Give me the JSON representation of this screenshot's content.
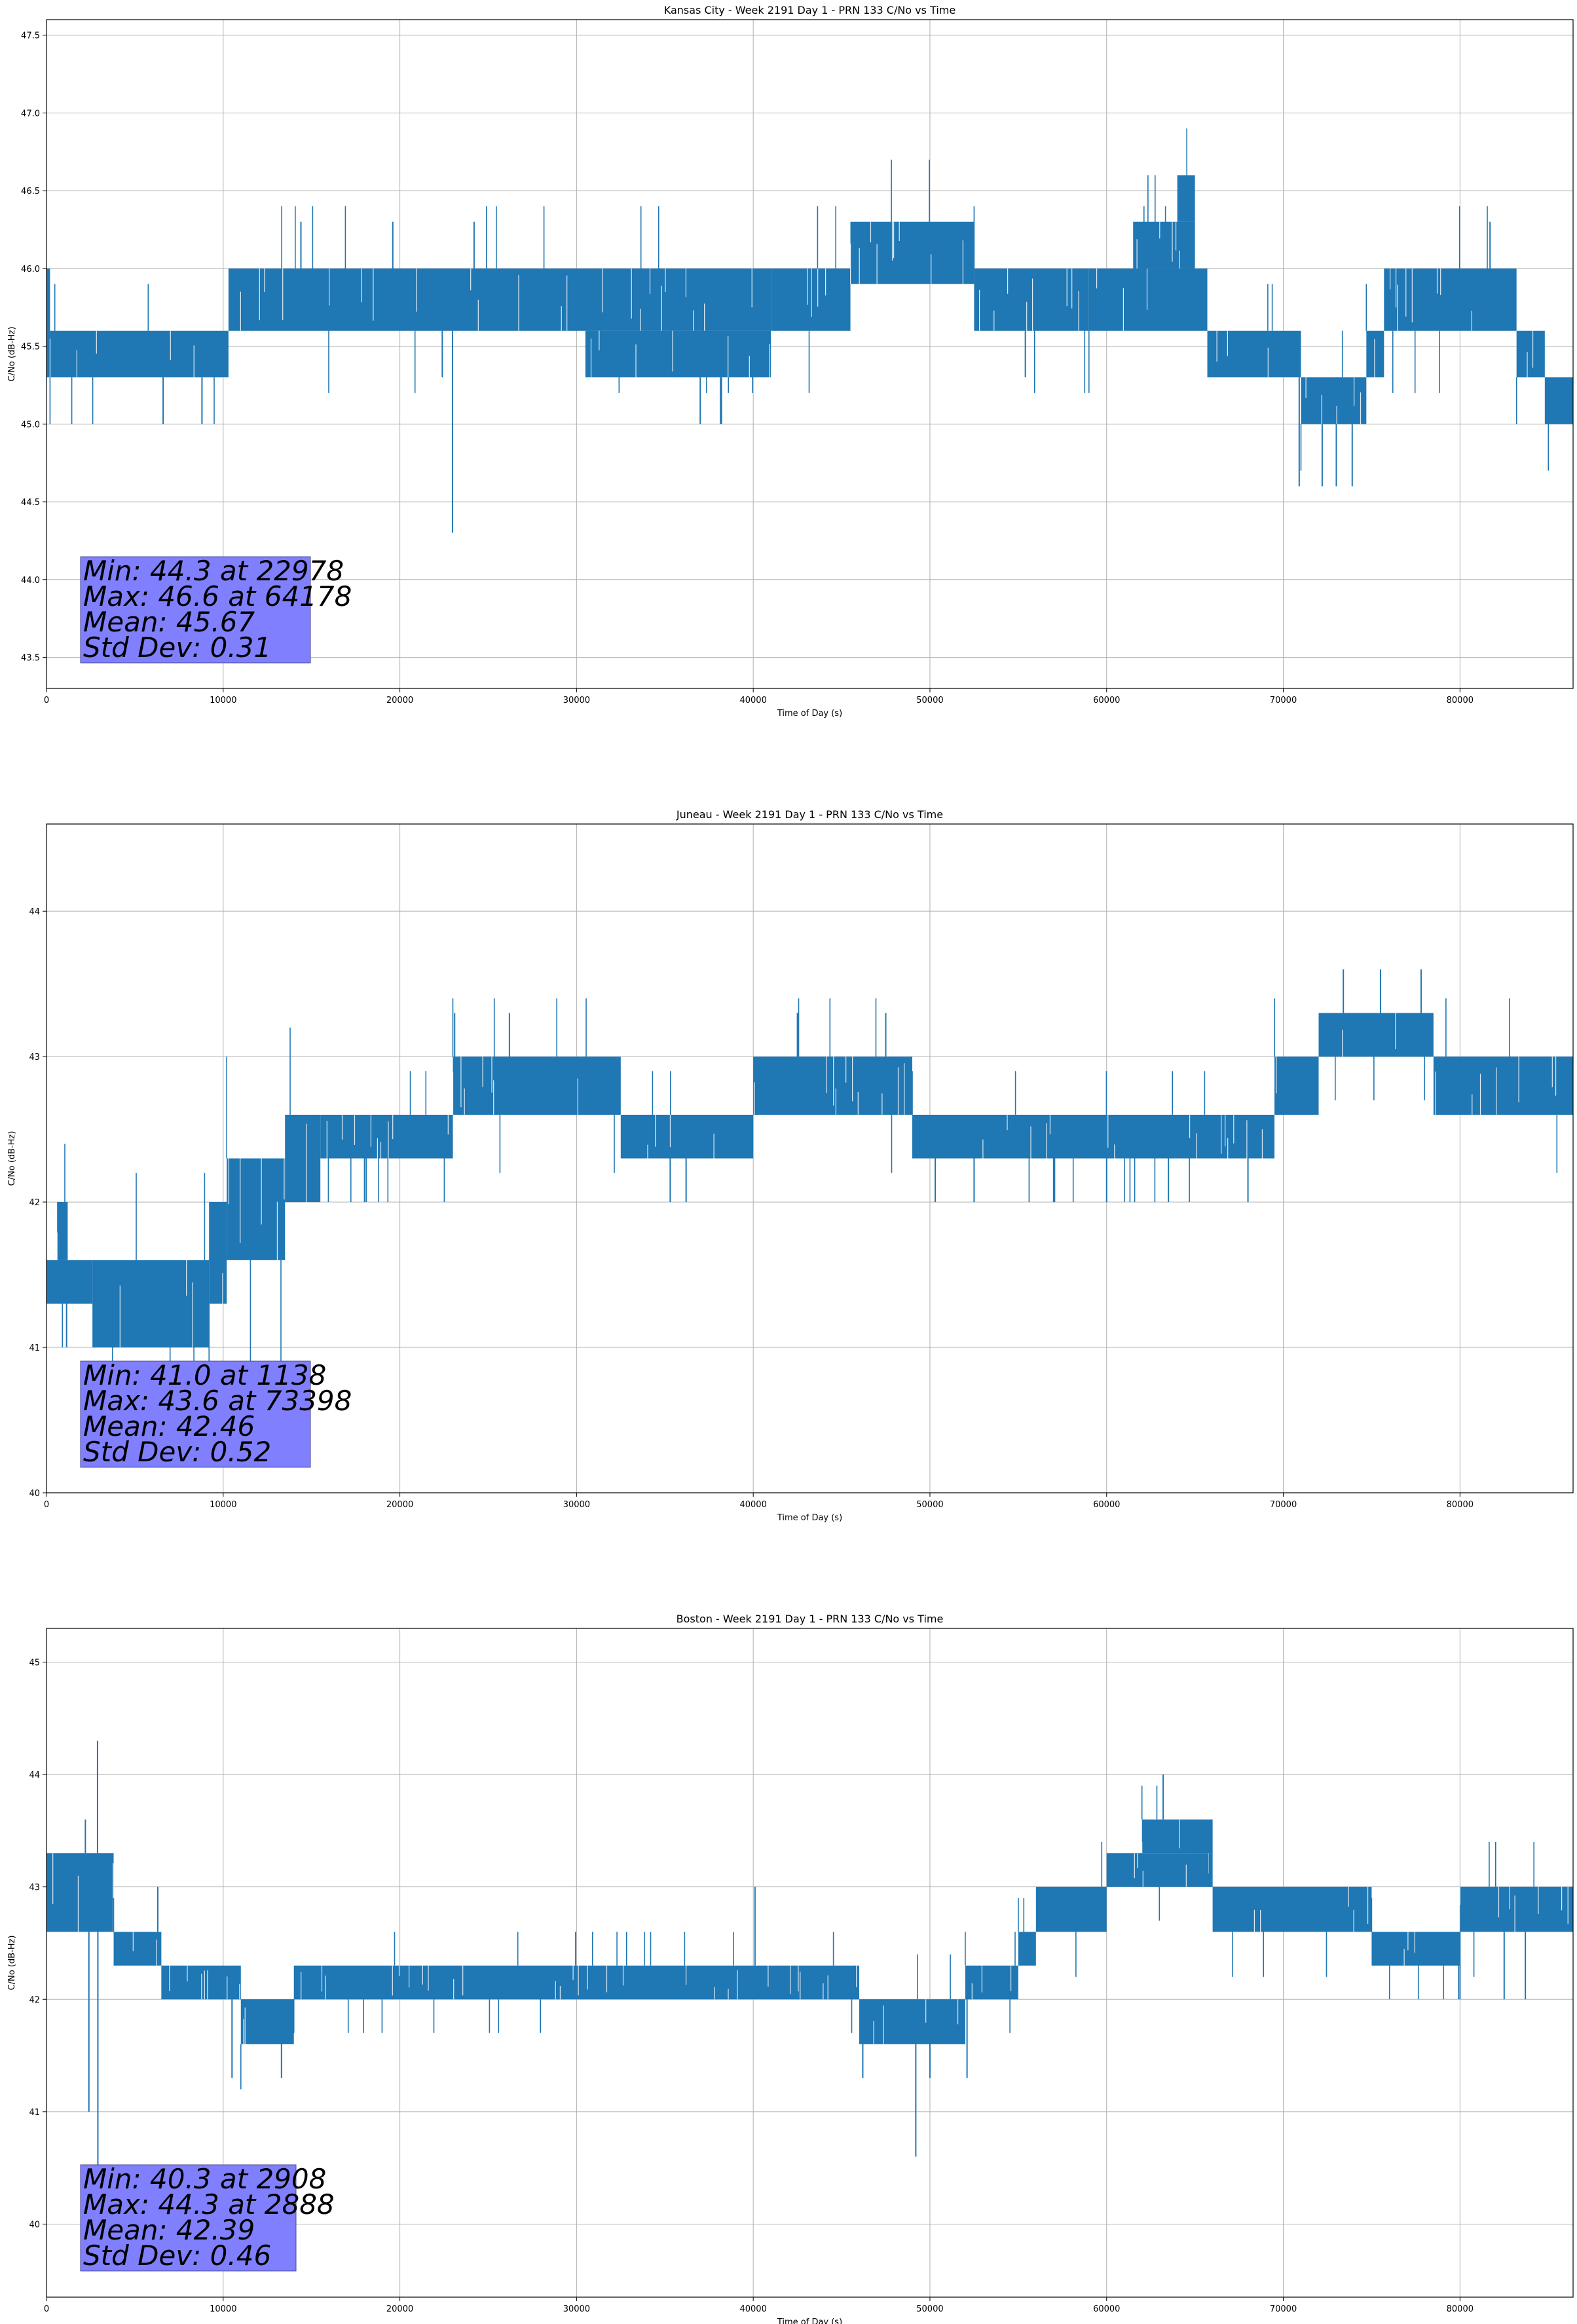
{
  "chart_data": [
    {
      "type": "line",
      "title": "Kansas City - Week 2191 Day 1 - PRN 133 C/No vs Time",
      "xlabel": "Time of Day (s)",
      "ylabel": "C/No (dB-Hz)",
      "xlim": [
        0,
        86400
      ],
      "ylim": [
        43.3,
        47.6
      ],
      "xticks": [
        0,
        10000,
        20000,
        30000,
        40000,
        50000,
        60000,
        70000,
        80000
      ],
      "yticks": [
        43.5,
        44.0,
        44.5,
        45.0,
        45.5,
        46.0,
        46.5,
        47.0,
        47.5
      ],
      "ytick_labels": [
        "43.5",
        "44.0",
        "44.5",
        "45.0",
        "45.5",
        "46.0",
        "46.5",
        "47.0",
        "47.5"
      ],
      "grid": true,
      "color": "#1f77b4",
      "stats": [
        "Min: 44.3 at 22978",
        "Max: 46.6 at 64178",
        "Mean: 45.67",
        "Std Dev: 0.31"
      ],
      "segments": [
        {
          "x": [
            0,
            200
          ],
          "low": 45.3,
          "high": 46.0
        },
        {
          "x": [
            200,
            10300
          ],
          "low": 45.3,
          "high": 45.6
        },
        {
          "x": [
            10300,
            41000
          ],
          "low": 45.6,
          "high": 46.0
        },
        {
          "x": [
            30500,
            41000
          ],
          "low": 45.3,
          "high": 45.6
        },
        {
          "x": [
            41000,
            45500
          ],
          "low": 45.6,
          "high": 46.0
        },
        {
          "x": [
            45500,
            52500
          ],
          "low": 45.9,
          "high": 46.3
        },
        {
          "x": [
            52500,
            59000
          ],
          "low": 45.6,
          "high": 46.0
        },
        {
          "x": [
            59000,
            65700
          ],
          "low": 45.6,
          "high": 46.0
        },
        {
          "x": [
            61500,
            65000
          ],
          "low": 46.0,
          "high": 46.3
        },
        {
          "x": [
            64000,
            65000
          ],
          "low": 46.3,
          "high": 46.6
        },
        {
          "x": [
            65700,
            71000
          ],
          "low": 45.3,
          "high": 45.6
        },
        {
          "x": [
            71000,
            74700
          ],
          "low": 45.0,
          "high": 45.3
        },
        {
          "x": [
            74700,
            75700
          ],
          "low": 45.3,
          "high": 45.6
        },
        {
          "x": [
            75700,
            83200
          ],
          "low": 45.6,
          "high": 46.0
        },
        {
          "x": [
            83200,
            84800
          ],
          "low": 45.3,
          "high": 45.6
        },
        {
          "x": [
            84800,
            86400
          ],
          "low": 45.0,
          "high": 45.3
        }
      ],
      "spikes": [
        {
          "x": 22978,
          "y": 44.3
        },
        {
          "x": 6600,
          "y": 45.0
        },
        {
          "x": 8800,
          "y": 45.0
        },
        {
          "x": 22400,
          "y": 45.3
        },
        {
          "x": 37000,
          "y": 45.0
        },
        {
          "x": 38200,
          "y": 45.0
        },
        {
          "x": 55400,
          "y": 45.3
        },
        {
          "x": 70900,
          "y": 44.6
        },
        {
          "x": 72200,
          "y": 44.6
        },
        {
          "x": 73000,
          "y": 44.6
        },
        {
          "x": 73900,
          "y": 44.6
        },
        {
          "x": 14400,
          "y": 46.3
        },
        {
          "x": 19600,
          "y": 46.3
        },
        {
          "x": 24200,
          "y": 46.3
        },
        {
          "x": 81700,
          "y": 46.3
        }
      ]
    },
    {
      "type": "line",
      "title": "Juneau - Week 2191 Day 1 - PRN 133 C/No vs Time",
      "xlabel": "Time of Day (s)",
      "ylabel": "C/No (dB-Hz)",
      "xlim": [
        0,
        86400
      ],
      "ylim": [
        40.0,
        44.6
      ],
      "xticks": [
        0,
        10000,
        20000,
        30000,
        40000,
        50000,
        60000,
        70000,
        80000
      ],
      "yticks": [
        40,
        41,
        42,
        43,
        44
      ],
      "ytick_labels": [
        "40",
        "41",
        "42",
        "43",
        "44"
      ],
      "grid": true,
      "color": "#1f77b4",
      "stats": [
        "Min: 41.0 at 1138",
        "Max: 43.6 at 73398",
        "Mean: 42.46",
        "Std Dev: 0.52"
      ],
      "segments": [
        {
          "x": [
            0,
            2600
          ],
          "low": 41.3,
          "high": 41.6
        },
        {
          "x": [
            600,
            1200
          ],
          "low": 41.6,
          "high": 42.0
        },
        {
          "x": [
            2600,
            9200
          ],
          "low": 41.0,
          "high": 41.6
        },
        {
          "x": [
            9200,
            10200
          ],
          "low": 41.3,
          "high": 42.0
        },
        {
          "x": [
            10200,
            13500
          ],
          "low": 41.6,
          "high": 42.3
        },
        {
          "x": [
            13500,
            15500
          ],
          "low": 42.0,
          "high": 42.6
        },
        {
          "x": [
            15500,
            23000
          ],
          "low": 42.3,
          "high": 42.6
        },
        {
          "x": [
            23000,
            32500
          ],
          "low": 42.6,
          "high": 43.0
        },
        {
          "x": [
            32500,
            40000
          ],
          "low": 42.3,
          "high": 42.6
        },
        {
          "x": [
            40000,
            49000
          ],
          "low": 42.6,
          "high": 43.0
        },
        {
          "x": [
            49000,
            69500
          ],
          "low": 42.3,
          "high": 42.6
        },
        {
          "x": [
            69500,
            72000
          ],
          "low": 42.6,
          "high": 43.0
        },
        {
          "x": [
            72000,
            78500
          ],
          "low": 43.0,
          "high": 43.3
        },
        {
          "x": [
            78500,
            86400
          ],
          "low": 42.6,
          "high": 43.0
        }
      ],
      "spikes": [
        {
          "x": 1138,
          "y": 41.0
        },
        {
          "x": 5000,
          "y": 41.0
        },
        {
          "x": 18000,
          "y": 42.0
        },
        {
          "x": 35300,
          "y": 42.0
        },
        {
          "x": 36200,
          "y": 42.0
        },
        {
          "x": 50300,
          "y": 42.0
        },
        {
          "x": 52500,
          "y": 42.0
        },
        {
          "x": 57000,
          "y": 42.0
        },
        {
          "x": 60000,
          "y": 42.0
        },
        {
          "x": 63500,
          "y": 42.0
        },
        {
          "x": 68000,
          "y": 42.0
        },
        {
          "x": 23100,
          "y": 43.3
        },
        {
          "x": 26200,
          "y": 43.3
        },
        {
          "x": 42500,
          "y": 43.3
        },
        {
          "x": 47500,
          "y": 43.3
        },
        {
          "x": 73398,
          "y": 43.6
        },
        {
          "x": 75500,
          "y": 43.6
        },
        {
          "x": 77800,
          "y": 43.6
        }
      ]
    },
    {
      "type": "line",
      "title": "Boston - Week 2191 Day 1 - PRN 133 C/No vs Time",
      "xlabel": "Time of Day (s)",
      "ylabel": "C/No (dB-Hz)",
      "xlim": [
        0,
        86400
      ],
      "ylim": [
        39.35,
        45.3
      ],
      "xticks": [
        0,
        10000,
        20000,
        30000,
        40000,
        50000,
        60000,
        70000,
        80000
      ],
      "yticks": [
        40,
        41,
        42,
        43,
        44,
        45
      ],
      "ytick_labels": [
        "40",
        "41",
        "42",
        "43",
        "44",
        "45"
      ],
      "grid": true,
      "color": "#1f77b4",
      "stats": [
        "Min: 40.3 at 2908",
        "Max: 44.3 at 2888",
        "Mean: 42.39",
        "Std Dev: 0.46"
      ],
      "segments": [
        {
          "x": [
            0,
            3800
          ],
          "low": 42.6,
          "high": 43.3
        },
        {
          "x": [
            3800,
            6500
          ],
          "low": 42.3,
          "high": 42.6
        },
        {
          "x": [
            6500,
            11000
          ],
          "low": 42.0,
          "high": 42.3
        },
        {
          "x": [
            11000,
            14000
          ],
          "low": 41.6,
          "high": 42.0
        },
        {
          "x": [
            14000,
            46000
          ],
          "low": 42.0,
          "high": 42.3
        },
        {
          "x": [
            46000,
            52000
          ],
          "low": 41.6,
          "high": 42.0
        },
        {
          "x": [
            52000,
            55000
          ],
          "low": 42.0,
          "high": 42.3
        },
        {
          "x": [
            55000,
            56000
          ],
          "low": 42.3,
          "high": 42.6
        },
        {
          "x": [
            56000,
            60000
          ],
          "low": 42.6,
          "high": 43.0
        },
        {
          "x": [
            60000,
            66000
          ],
          "low": 43.0,
          "high": 43.3
        },
        {
          "x": [
            62000,
            66000
          ],
          "low": 43.3,
          "high": 43.6
        },
        {
          "x": [
            66000,
            75000
          ],
          "low": 42.6,
          "high": 43.0
        },
        {
          "x": [
            75000,
            80000
          ],
          "low": 42.3,
          "high": 42.6
        },
        {
          "x": [
            80000,
            86400
          ],
          "low": 42.6,
          "high": 43.0
        }
      ],
      "spikes": [
        {
          "x": 2888,
          "y": 44.3
        },
        {
          "x": 2908,
          "y": 40.3
        },
        {
          "x": 2400,
          "y": 41.0
        },
        {
          "x": 2200,
          "y": 43.6
        },
        {
          "x": 6300,
          "y": 43.0
        },
        {
          "x": 10500,
          "y": 41.3
        },
        {
          "x": 13300,
          "y": 41.3
        },
        {
          "x": 40100,
          "y": 43.0
        },
        {
          "x": 46200,
          "y": 41.3
        },
        {
          "x": 49200,
          "y": 40.6
        },
        {
          "x": 50000,
          "y": 41.3
        },
        {
          "x": 52100,
          "y": 41.3
        },
        {
          "x": 63200,
          "y": 44.0
        },
        {
          "x": 80000,
          "y": 42.0
        },
        {
          "x": 82500,
          "y": 42.0
        },
        {
          "x": 83700,
          "y": 42.0
        }
      ]
    }
  ]
}
